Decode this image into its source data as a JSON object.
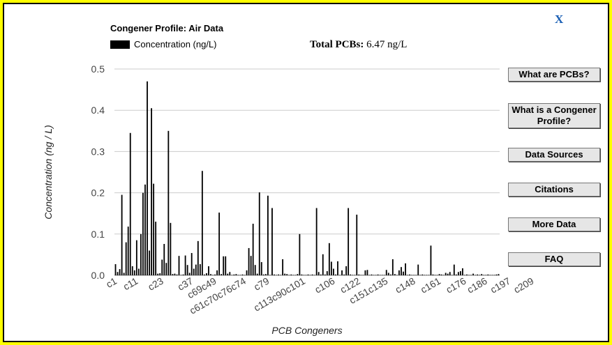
{
  "close_label": "X",
  "total": {
    "label": "Total PCBs:",
    "value": "6.47 ng/L"
  },
  "buttons": [
    {
      "label": "What are PCBs?"
    },
    {
      "label": "What is a Congener Profile?"
    },
    {
      "label": "Data Sources"
    },
    {
      "label": "Citations"
    },
    {
      "label": "More Data"
    },
    {
      "label": "FAQ"
    }
  ],
  "colors": {
    "background": "#ffff00",
    "bar": "#000000",
    "link": "#1a5fb4",
    "grid": "#cccccc"
  },
  "chart_data": {
    "type": "bar",
    "title": "Congener Profile: Air Data",
    "xlabel": "PCB Congeners",
    "ylabel": "Concentration (ng / L)",
    "legend": "Concentration (ng/L)",
    "legend_position": "top-left",
    "grid": true,
    "ylim": [
      0,
      0.5
    ],
    "yticks": [
      0.0,
      0.1,
      0.2,
      0.3,
      0.4,
      0.5
    ],
    "xtick_labels": [
      {
        "label": "c1",
        "index": 0
      },
      {
        "label": "c11",
        "index": 10
      },
      {
        "label": "c23",
        "index": 22
      },
      {
        "label": "c37",
        "index": 36
      },
      {
        "label": "c69c49",
        "index": 47
      },
      {
        "label": "c61c70c76c74",
        "index": 61
      },
      {
        "label": "c79",
        "index": 72
      },
      {
        "label": "c113c90c101",
        "index": 89
      },
      {
        "label": "c106",
        "index": 103
      },
      {
        "label": "c122",
        "index": 115
      },
      {
        "label": "c151c135",
        "index": 128
      },
      {
        "label": "c148",
        "index": 141
      },
      {
        "label": "c161",
        "index": 153
      },
      {
        "label": "c176",
        "index": 165
      },
      {
        "label": "c186",
        "index": 175
      },
      {
        "label": "c197",
        "index": 186
      },
      {
        "label": "c209",
        "index": 197
      }
    ],
    "series": [
      {
        "name": "Concentration (ng/L)",
        "values": [
          0.027,
          0.008,
          0.015,
          0.195,
          0.006,
          0.08,
          0.118,
          0.345,
          0.022,
          0.012,
          0.085,
          0.016,
          0.1,
          0.2,
          0.22,
          0.47,
          0.06,
          0.405,
          0.222,
          0.13,
          0.004,
          0.005,
          0.038,
          0.076,
          0.03,
          0.35,
          0.127,
          0.003,
          0.004,
          0.002,
          0.047,
          0.001,
          0.002,
          0.048,
          0.025,
          0.006,
          0.054,
          0.016,
          0.026,
          0.083,
          0.027,
          0.253,
          0.002,
          0.005,
          0.022,
          0.003,
          0.001,
          0.002,
          0.012,
          0.152,
          0.003,
          0.046,
          0.046,
          0.004,
          0.008,
          0.001,
          0.002,
          0.003,
          0.001,
          0.001,
          0.002,
          0.001,
          0.012,
          0.066,
          0.047,
          0.125,
          0.025,
          0.004,
          0.201,
          0.032,
          0.002,
          0.003,
          0.193,
          0.001,
          0.163,
          0.002,
          0.001,
          0.002,
          0.001,
          0.039,
          0.004,
          0.003,
          0.001,
          0.002,
          0.001,
          0.001,
          0.003,
          0.1,
          0.002,
          0.001,
          0.001,
          0.002,
          0.001,
          0.002,
          0.001,
          0.163,
          0.008,
          0.002,
          0.051,
          0.002,
          0.01,
          0.078,
          0.033,
          0.016,
          0.002,
          0.034,
          0.001,
          0.012,
          0.002,
          0.022,
          0.163,
          0.002,
          0.001,
          0.001,
          0.147,
          0.002,
          0.001,
          0.001,
          0.012,
          0.013,
          0.001,
          0.002,
          0.001,
          0.001,
          0.002,
          0.001,
          0.001,
          0.001,
          0.013,
          0.006,
          0.002,
          0.039,
          0.003,
          0.001,
          0.012,
          0.02,
          0.009,
          0.029,
          0.001,
          0.002,
          0.001,
          0.001,
          0.001,
          0.026,
          0.001,
          0.002,
          0.001,
          0.001,
          0.001,
          0.072,
          0.002,
          0.001,
          0.001,
          0.003,
          0.002,
          0.001,
          0.006,
          0.004,
          0.008,
          0.001,
          0.026,
          0.002,
          0.008,
          0.01,
          0.017,
          0.001,
          0.002,
          0.001,
          0.001,
          0.004,
          0.001,
          0.002,
          0.001,
          0.003,
          0.001,
          0.001,
          0.002,
          0.001,
          0.001,
          0.001,
          0.002,
          0.003
        ]
      }
    ]
  }
}
